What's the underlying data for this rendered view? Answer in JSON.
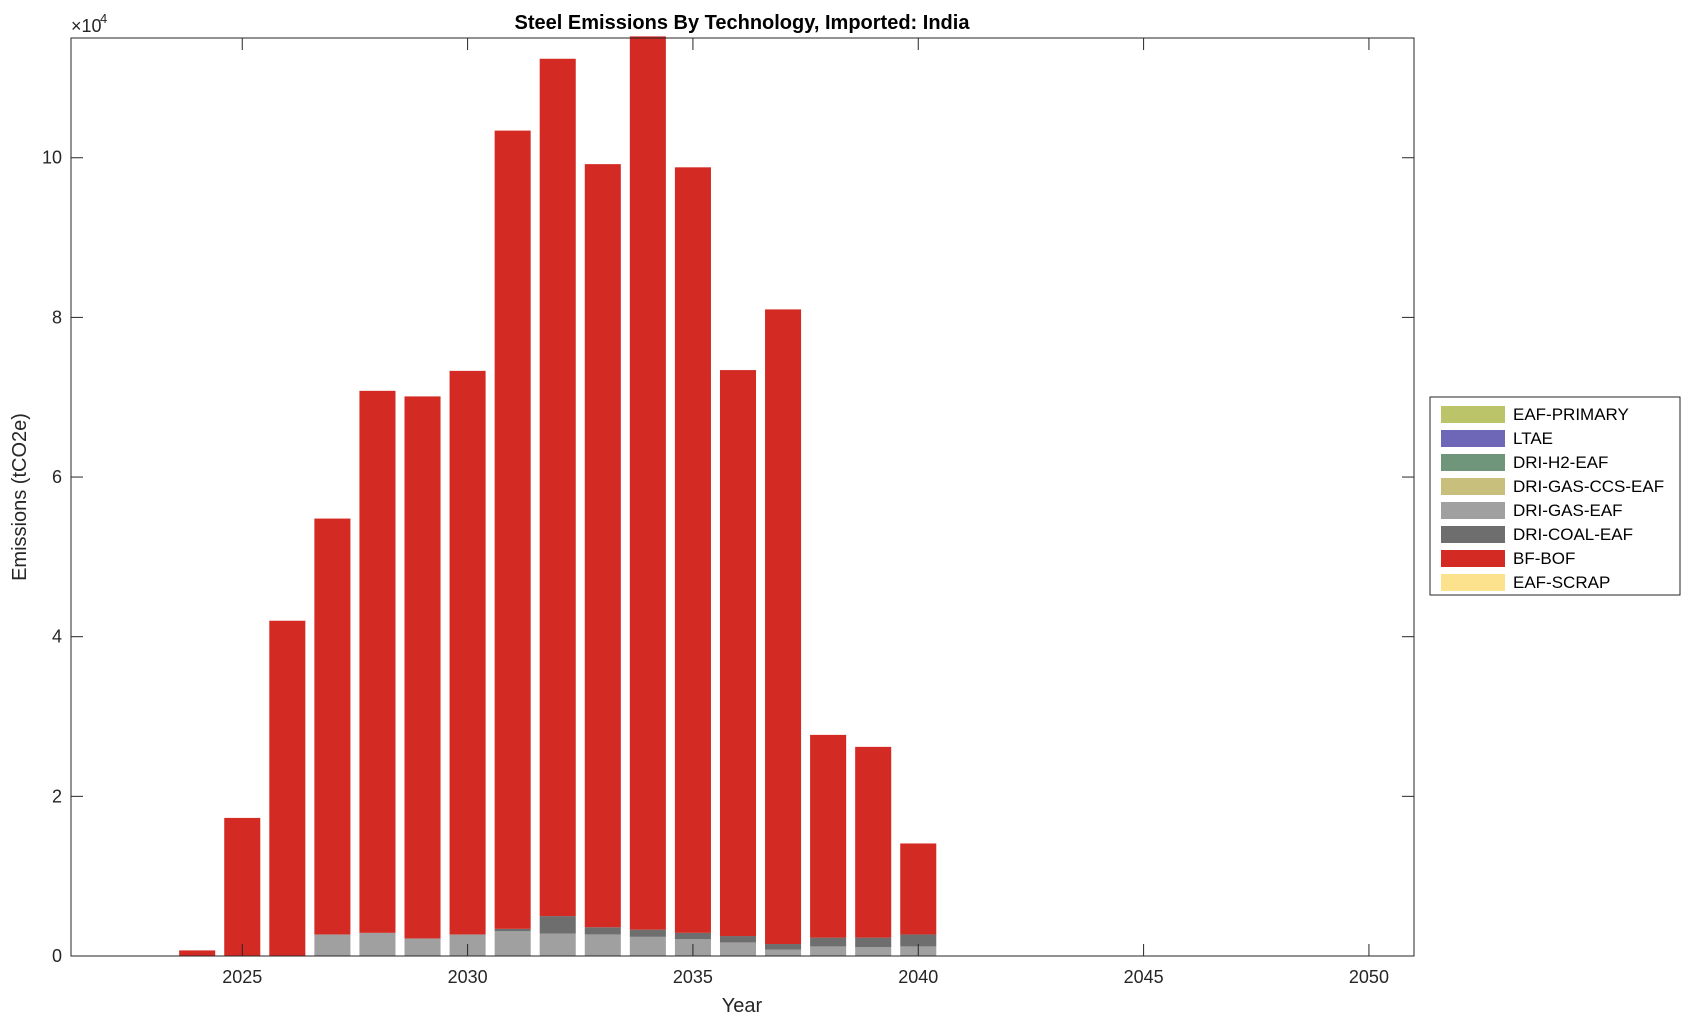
{
  "chart_data": {
    "type": "bar",
    "stacked": true,
    "title": "Steel Emissions By Technology, Imported: India",
    "xlabel": "Year",
    "ylabel": "Emissions (tCO2e)",
    "y_exponent_label": "×10",
    "y_exponent": "4",
    "xlim": [
      2021.2,
      2051
    ],
    "ylim": [
      0,
      115000
    ],
    "xticks": [
      2025,
      2030,
      2035,
      2040,
      2045,
      2050
    ],
    "yticks": [
      0,
      20000,
      40000,
      60000,
      80000,
      100000
    ],
    "ytick_labels": [
      "0",
      "2",
      "4",
      "6",
      "8",
      "10"
    ],
    "grid": false,
    "legend_position": "right",
    "x": [
      2024,
      2025,
      2026,
      2027,
      2028,
      2029,
      2030,
      2031,
      2032,
      2033,
      2034,
      2035,
      2036,
      2037,
      2038,
      2039,
      2040
    ],
    "series": [
      {
        "name": "EAF-PRIMARY",
        "color": "#bcc46a",
        "values": [
          0,
          0,
          0,
          0,
          0,
          0,
          0,
          0,
          0,
          0,
          0,
          0,
          0,
          0,
          0,
          0,
          0
        ]
      },
      {
        "name": "LTAE",
        "color": "#6e67b8",
        "values": [
          0,
          0,
          0,
          0,
          0,
          0,
          0,
          0,
          0,
          0,
          0,
          0,
          0,
          0,
          0,
          0,
          0
        ]
      },
      {
        "name": "DRI-H2-EAF",
        "color": "#6f957a",
        "values": [
          0,
          0,
          0,
          0,
          0,
          0,
          0,
          0,
          0,
          0,
          0,
          0,
          0,
          0,
          0,
          0,
          0
        ]
      },
      {
        "name": "DRI-GAS-CCS-EAF",
        "color": "#c8bf7c",
        "values": [
          0,
          0,
          0,
          0,
          0,
          0,
          0,
          0,
          0,
          0,
          0,
          0,
          0,
          0,
          0,
          0,
          0
        ]
      },
      {
        "name": "DRI-GAS-EAF",
        "color": "#a0a0a0",
        "values": [
          0,
          0,
          0,
          2700,
          2900,
          2200,
          2700,
          3100,
          2800,
          2700,
          2400,
          2100,
          1700,
          800,
          1200,
          1100,
          1200
        ]
      },
      {
        "name": "DRI-COAL-EAF",
        "color": "#6e6e6e",
        "values": [
          0,
          0,
          0,
          0,
          0,
          0,
          0,
          300,
          2200,
          900,
          900,
          800,
          800,
          700,
          1100,
          1200,
          1500
        ]
      },
      {
        "name": "BF-BOF",
        "color": "#d42a24",
        "values": [
          700,
          17300,
          42000,
          52100,
          67900,
          67900,
          70600,
          100000,
          107400,
          95600,
          111900,
          95900,
          70900,
          79500,
          25400,
          23900,
          11400
        ]
      },
      {
        "name": "EAF-SCRAP",
        "color": "#fde28e",
        "values": [
          0,
          0,
          0,
          0,
          0,
          0,
          0,
          0,
          0,
          0,
          0,
          0,
          0,
          0,
          0,
          0,
          0
        ]
      }
    ]
  }
}
